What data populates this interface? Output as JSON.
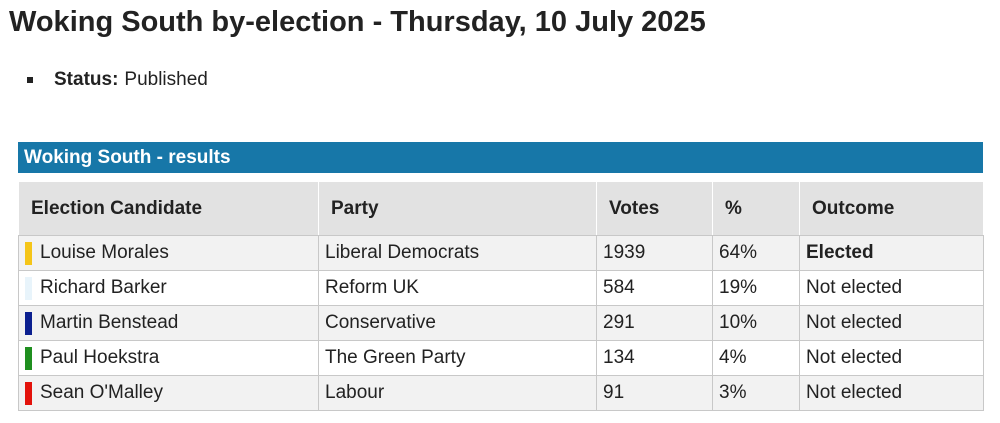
{
  "page": {
    "title": "Woking South by-election - Thursday, 10 July 2025",
    "status_label": "Status:",
    "status_value": "Published"
  },
  "results": {
    "caption": "Woking South - results",
    "headers": {
      "candidate": "Election Candidate",
      "party": "Party",
      "votes": "Votes",
      "percent": "%",
      "outcome": "Outcome"
    },
    "rows": [
      {
        "candidate": "Louise Morales",
        "party": "Liberal Democrats",
        "votes": "1939",
        "percent": "64%",
        "outcome": "Elected",
        "color": "#f5c518"
      },
      {
        "candidate": "Richard Barker",
        "party": "Reform UK",
        "votes": "584",
        "percent": "19%",
        "outcome": "Not elected",
        "color": "#e8f4fb"
      },
      {
        "candidate": "Martin Benstead",
        "party": "Conservative",
        "votes": "291",
        "percent": "10%",
        "outcome": "Not elected",
        "color": "#0b1f8f"
      },
      {
        "candidate": "Paul Hoekstra",
        "party": "The Green Party",
        "votes": "134",
        "percent": "4%",
        "outcome": "Not elected",
        "color": "#1f8f1f"
      },
      {
        "candidate": "Sean O'Malley",
        "party": "Labour",
        "votes": "91",
        "percent": "3%",
        "outcome": "Not elected",
        "color": "#e3120b"
      }
    ]
  },
  "colors": {
    "caption_background": "#1777a8",
    "header_background": "#e2e2e2",
    "row_shade": "#f2f2f2"
  }
}
